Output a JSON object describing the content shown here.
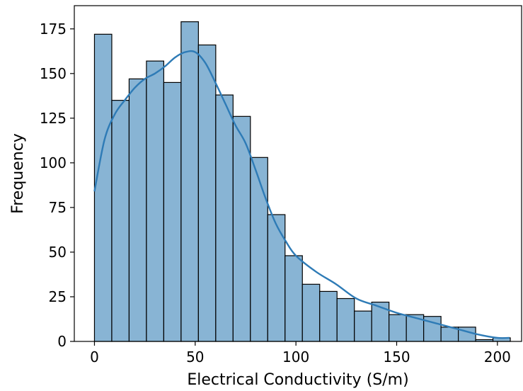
{
  "chart_data": {
    "type": "bar",
    "subtype": "histogram-with-kde",
    "title": "",
    "xlabel": "Electrical Conductivity (S/m)",
    "ylabel": "Frequency",
    "xlim": [
      -10,
      212
    ],
    "ylim": [
      0,
      188
    ],
    "xticks": [
      0,
      50,
      100,
      150,
      200
    ],
    "yticks": [
      0,
      25,
      50,
      75,
      100,
      125,
      150,
      175
    ],
    "bin_width": 8.6,
    "bin_edges": [
      0,
      8.6,
      17.2,
      25.8,
      34.4,
      43.0,
      51.6,
      60.2,
      68.8,
      77.4,
      86.0,
      94.6,
      103.2,
      111.8,
      120.4,
      129.0,
      137.6,
      146.2,
      154.8,
      163.4,
      172.0,
      180.6,
      189.2,
      197.8,
      206.4
    ],
    "values": [
      172,
      135,
      147,
      157,
      145,
      179,
      166,
      138,
      126,
      103,
      71,
      48,
      32,
      28,
      24,
      17,
      22,
      15,
      15,
      14,
      8,
      8,
      1,
      2
    ],
    "kde": {
      "x": [
        0,
        5,
        10,
        15,
        20,
        25,
        30,
        35,
        40,
        45,
        50,
        55,
        60,
        65,
        70,
        75,
        80,
        85,
        90,
        95,
        100,
        110,
        120,
        130,
        140,
        150,
        160,
        170,
        180,
        190,
        200,
        206
      ],
      "y": [
        84,
        113,
        127,
        135,
        142,
        147,
        150,
        154,
        159,
        162,
        162,
        156,
        145,
        133,
        121,
        111,
        96,
        80,
        66,
        56,
        48,
        39,
        32,
        24,
        20,
        16,
        13,
        10,
        7,
        4,
        2,
        2
      ]
    },
    "colors": {
      "bar_fill": "#88b4d4",
      "bar_edge": "#000000",
      "kde_line": "#2e7bb6"
    },
    "grid": false,
    "legend": "none"
  }
}
